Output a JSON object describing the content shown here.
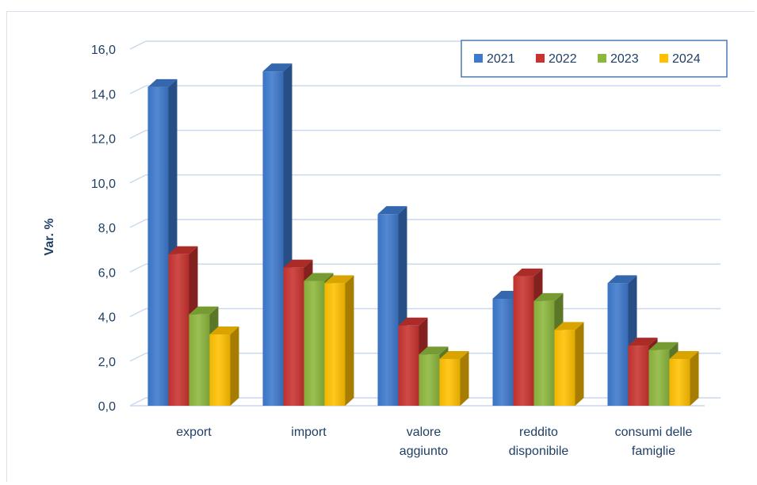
{
  "chart_data": {
    "type": "bar",
    "style": "3d-clustered-column",
    "ylabel": "Var. %",
    "xlabel": "",
    "ylim": [
      0,
      16
    ],
    "y_ticks": [
      "0,0",
      "2,0",
      "4,0",
      "6,0",
      "8,0",
      "10,0",
      "12,0",
      "14,0",
      "16,0"
    ],
    "grid": true,
    "legend_position": "top-right",
    "categories": [
      [
        "export"
      ],
      [
        "import"
      ],
      [
        "valore",
        "aggiunto"
      ],
      [
        "reddito",
        "disponibile"
      ],
      [
        "consumi delle",
        "famiglie"
      ]
    ],
    "series": [
      {
        "name": "2021",
        "color": "#3d79cc",
        "values": [
          14.3,
          15.0,
          8.6,
          4.8,
          5.5
        ]
      },
      {
        "name": "2022",
        "color": "#c8332f",
        "values": [
          6.8,
          6.2,
          3.6,
          5.8,
          2.7
        ]
      },
      {
        "name": "2023",
        "color": "#8cb63c",
        "values": [
          4.1,
          5.6,
          2.3,
          4.7,
          2.5
        ]
      },
      {
        "name": "2024",
        "color": "#ffc000",
        "values": [
          3.2,
          5.5,
          2.1,
          3.4,
          2.1
        ]
      }
    ],
    "colors": {
      "grid": "#c9d9ef",
      "text": "#1f3f66",
      "legend_border": "#4a7ab5"
    }
  }
}
